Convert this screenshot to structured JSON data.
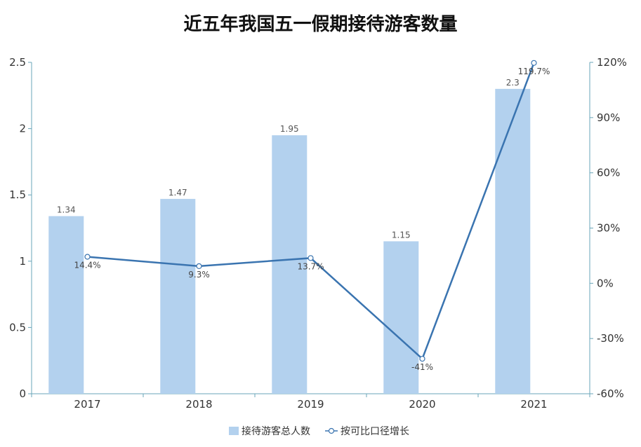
{
  "chart_data": {
    "type": "bar",
    "title": "近五年我国五一假期接待游客数量",
    "categories": [
      "2017",
      "2018",
      "2019",
      "2020",
      "2021"
    ],
    "series": [
      {
        "name": "接待游客总人数",
        "type": "bar",
        "axis": "left",
        "values": [
          1.34,
          1.47,
          1.95,
          1.15,
          2.3
        ],
        "labels": [
          "1.34",
          "1.47",
          "1.95",
          "1.15",
          "2.3"
        ]
      },
      {
        "name": "按可比口径增长",
        "type": "line",
        "axis": "right",
        "values": [
          14.4,
          9.3,
          13.7,
          -41,
          119.7
        ],
        "labels": [
          "14.4%",
          "9.3%",
          "13.7%",
          "-41%",
          "119.7%"
        ]
      }
    ],
    "y_left": {
      "min": 0,
      "max": 2.5,
      "ticks": [
        "0",
        "0.5",
        "1",
        "1.5",
        "2",
        "2.5"
      ]
    },
    "y_right": {
      "min": -60,
      "max": 120,
      "ticks": [
        "-60%",
        "-30%",
        "0%",
        "30%",
        "60%",
        "90%",
        "120%"
      ]
    },
    "grid": false,
    "legend_position": "bottom-center",
    "colors": {
      "bar": "#b3d1ee",
      "line": "#3a74b0",
      "axis": "#6aa5b8"
    }
  }
}
